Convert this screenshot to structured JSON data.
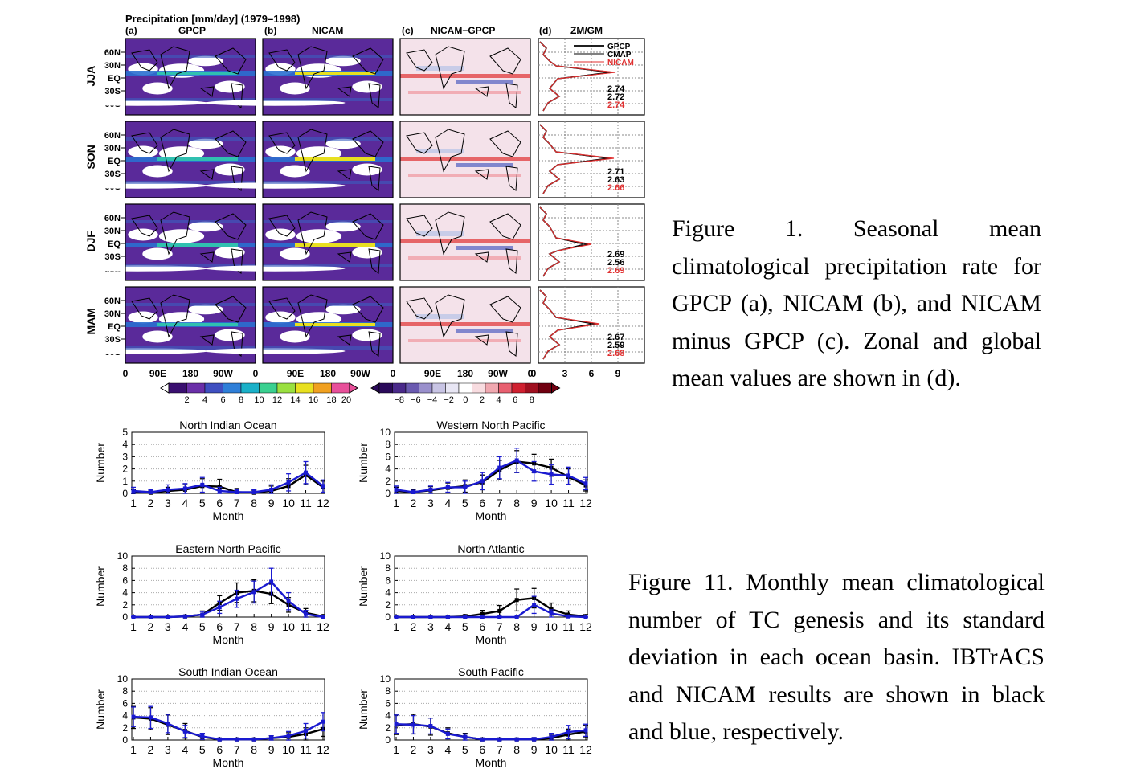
{
  "figure1": {
    "title": "Precipitation [mm/day] (1979–1998)",
    "panel_labels": {
      "a": "(a)",
      "b": "(b)",
      "c": "(c)",
      "d": "(d)"
    },
    "panel_titles": {
      "a": "GPCP",
      "b": "NICAM",
      "c": "NICAM−GPCP",
      "d": "ZM/GM"
    },
    "seasons": [
      "JJA",
      "SON",
      "DJF",
      "MAM"
    ],
    "lat_ticks": [
      "60N",
      "30N",
      "EQ",
      "30S",
      "60S"
    ],
    "lon_ticks": [
      "0",
      "90E",
      "180",
      "90W",
      "0"
    ],
    "zm_ticks": [
      "0",
      "3",
      "6",
      "9"
    ],
    "legend": [
      {
        "name": "GPCP",
        "color": "#000000"
      },
      {
        "name": "CMAP",
        "color": "#000000"
      },
      {
        "name": "NICAM",
        "color": "#e03030"
      }
    ],
    "global_means": [
      {
        "season": "JJA",
        "gpcp": "2.74",
        "cmap": "2.72",
        "nicam": "2.74"
      },
      {
        "season": "SON",
        "gpcp": "2.71",
        "cmap": "2.63",
        "nicam": "2.66"
      },
      {
        "season": "DJF",
        "gpcp": "2.69",
        "cmap": "2.56",
        "nicam": "2.69"
      },
      {
        "season": "MAM",
        "gpcp": "2.67",
        "cmap": "2.59",
        "nicam": "2.68"
      }
    ],
    "colorbar_precip": {
      "labels": [
        "2",
        "4",
        "6",
        "8",
        "10",
        "12",
        "14",
        "16",
        "18",
        "20"
      ]
    },
    "colorbar_diff": {
      "labels": [
        "−8",
        "−6",
        "−4",
        "−2",
        "0",
        "2",
        "4",
        "6",
        "8"
      ]
    },
    "colors": {
      "nicam": "#e03030",
      "precip_low": "#4a1a8c",
      "precip_high": "#e8e020"
    }
  },
  "caption1_lines": [
    "Figure 1. Seasonal mean",
    "climatological precipitation rate for",
    "GPCP (a), NICAM (b), and NICAM",
    "minus GPCP (c). Zonal and global",
    "mean values are shown in (d)."
  ],
  "caption2_lines": [
    "Figure 11. Monthly mean climatological",
    "number of TC genesis and its standard",
    "deviation in each ocean basin. IBTrACS",
    "and NICAM results are shown in black",
    "and blue, respectively."
  ],
  "chart_data": [
    {
      "type": "line",
      "title": "North Indian Ocean",
      "xlabel": "Month",
      "ylabel": "Number",
      "ylim": [
        0,
        5
      ],
      "yticks": [
        0,
        1,
        2,
        3,
        4,
        5
      ],
      "categories": [
        1,
        2,
        3,
        4,
        5,
        6,
        7,
        8,
        9,
        10,
        11,
        12
      ],
      "series": [
        {
          "color": "#000000",
          "values": [
            0.1,
            0.05,
            0.2,
            0.3,
            0.6,
            0.55,
            0.1,
            0.05,
            0.2,
            0.6,
            1.5,
            0.5
          ],
          "err": [
            0.2,
            0.15,
            0.3,
            0.4,
            0.6,
            0.6,
            0.3,
            0.2,
            0.4,
            0.6,
            0.8,
            0.5
          ]
        },
        {
          "color": "#1a1ad0",
          "values": [
            0.2,
            0.1,
            0.3,
            0.4,
            0.7,
            0.2,
            0.1,
            0.1,
            0.3,
            0.9,
            1.7,
            0.6
          ],
          "err": [
            0.3,
            0.2,
            0.4,
            0.4,
            0.6,
            0.3,
            0.2,
            0.2,
            0.4,
            0.7,
            0.9,
            0.5
          ]
        }
      ]
    },
    {
      "type": "line",
      "title": "Western North Pacific",
      "xlabel": "Month",
      "ylabel": "Number",
      "ylim": [
        0,
        10
      ],
      "yticks": [
        0,
        2,
        4,
        6,
        8,
        10
      ],
      "categories": [
        1,
        2,
        3,
        4,
        5,
        6,
        7,
        8,
        9,
        10,
        11,
        12
      ],
      "series": [
        {
          "color": "#000000",
          "values": [
            0.4,
            0.2,
            0.5,
            0.9,
            1.2,
            1.8,
            3.8,
            5.2,
            4.9,
            4.2,
            2.7,
            1.3
          ],
          "err": [
            0.6,
            0.4,
            0.6,
            0.8,
            1.0,
            1.2,
            1.6,
            1.8,
            1.5,
            1.4,
            1.3,
            0.9
          ]
        },
        {
          "color": "#1a1ad0",
          "values": [
            0.6,
            0.2,
            0.6,
            1.0,
            1.0,
            2.0,
            4.2,
            5.4,
            3.6,
            3.1,
            2.9,
            1.6
          ],
          "err": [
            0.6,
            0.3,
            0.6,
            0.8,
            1.0,
            1.4,
            1.8,
            2.0,
            1.6,
            1.6,
            1.4,
            1.0
          ]
        }
      ]
    },
    {
      "type": "line",
      "title": "Eastern North Pacific",
      "xlabel": "Month",
      "ylabel": "Number",
      "ylim": [
        0,
        10
      ],
      "yticks": [
        0,
        2,
        4,
        6,
        8,
        10
      ],
      "categories": [
        1,
        2,
        3,
        4,
        5,
        6,
        7,
        8,
        9,
        10,
        11,
        12
      ],
      "series": [
        {
          "color": "#000000",
          "values": [
            0.0,
            0.0,
            0.0,
            0.1,
            0.4,
            2.3,
            4.0,
            4.3,
            3.8,
            2.0,
            0.7,
            0.1
          ],
          "err": [
            0.1,
            0.1,
            0.1,
            0.2,
            0.6,
            1.2,
            1.6,
            1.8,
            1.6,
            1.2,
            0.7,
            0.3
          ]
        },
        {
          "color": "#1a1ad0",
          "values": [
            0.0,
            0.0,
            0.0,
            0.1,
            0.4,
            1.6,
            3.0,
            4.1,
            5.8,
            2.6,
            0.5,
            0.0
          ],
          "err": [
            0.1,
            0.1,
            0.1,
            0.2,
            0.5,
            1.0,
            1.4,
            1.8,
            2.2,
            1.4,
            0.6,
            0.1
          ]
        }
      ]
    },
    {
      "type": "line",
      "title": "North Atlantic",
      "xlabel": "Month",
      "ylabel": "Number",
      "ylim": [
        0,
        10
      ],
      "yticks": [
        0,
        2,
        4,
        6,
        8,
        10
      ],
      "categories": [
        1,
        2,
        3,
        4,
        5,
        6,
        7,
        8,
        9,
        10,
        11,
        12
      ],
      "series": [
        {
          "color": "#000000",
          "values": [
            0.0,
            0.0,
            0.0,
            0.0,
            0.1,
            0.5,
            1.0,
            2.8,
            3.1,
            1.3,
            0.4,
            0.1
          ],
          "err": [
            0.1,
            0.1,
            0.1,
            0.1,
            0.3,
            0.6,
            0.9,
            1.8,
            1.6,
            1.0,
            0.6,
            0.3
          ]
        },
        {
          "color": "#1a1ad0",
          "values": [
            0.0,
            0.0,
            0.0,
            0.0,
            0.0,
            0.0,
            0.0,
            0.0,
            2.0,
            0.6,
            0.1,
            0.0
          ],
          "err": [
            0.0,
            0.0,
            0.0,
            0.0,
            0.0,
            0.0,
            0.0,
            0.1,
            1.4,
            0.6,
            0.2,
            0.0
          ]
        }
      ]
    },
    {
      "type": "line",
      "title": "South Indian Ocean",
      "xlabel": "Month",
      "ylabel": "Number",
      "ylim": [
        0,
        10
      ],
      "yticks": [
        0,
        2,
        4,
        6,
        8,
        10
      ],
      "categories": [
        1,
        2,
        3,
        4,
        5,
        6,
        7,
        8,
        9,
        10,
        11,
        12
      ],
      "series": [
        {
          "color": "#000000",
          "values": [
            3.7,
            3.5,
            2.5,
            1.5,
            0.5,
            0.1,
            0.1,
            0.1,
            0.3,
            0.5,
            1.0,
            1.8
          ],
          "err": [
            1.8,
            1.8,
            1.6,
            1.2,
            0.6,
            0.2,
            0.2,
            0.2,
            0.4,
            0.7,
            1.0,
            1.2
          ]
        },
        {
          "color": "#1a1ad0",
          "values": [
            3.8,
            3.7,
            2.7,
            1.4,
            0.6,
            0.1,
            0.1,
            0.1,
            0.3,
            0.7,
            1.5,
            3.0
          ],
          "err": [
            1.6,
            1.8,
            1.5,
            1.0,
            0.5,
            0.2,
            0.2,
            0.2,
            0.4,
            0.7,
            1.2,
            1.5
          ]
        }
      ]
    },
    {
      "type": "line",
      "title": "South Pacific",
      "xlabel": "Month",
      "ylabel": "Number",
      "ylim": [
        0,
        10
      ],
      "yticks": [
        0,
        2,
        4,
        6,
        8,
        10
      ],
      "categories": [
        1,
        2,
        3,
        4,
        5,
        6,
        7,
        8,
        9,
        10,
        11,
        12
      ],
      "series": [
        {
          "color": "#000000",
          "values": [
            2.5,
            2.6,
            2.2,
            1.1,
            0.5,
            0.1,
            0.1,
            0.1,
            0.1,
            0.3,
            0.9,
            1.4
          ],
          "err": [
            1.6,
            1.6,
            1.4,
            0.9,
            0.6,
            0.2,
            0.2,
            0.2,
            0.3,
            0.5,
            0.9,
            1.0
          ]
        },
        {
          "color": "#1a1ad0",
          "values": [
            2.6,
            2.5,
            2.3,
            1.0,
            0.5,
            0.1,
            0.1,
            0.1,
            0.1,
            0.5,
            1.3,
            1.6
          ],
          "err": [
            1.5,
            1.5,
            1.3,
            0.8,
            0.5,
            0.2,
            0.2,
            0.2,
            0.3,
            0.6,
            1.1,
            1.0
          ]
        }
      ]
    }
  ]
}
